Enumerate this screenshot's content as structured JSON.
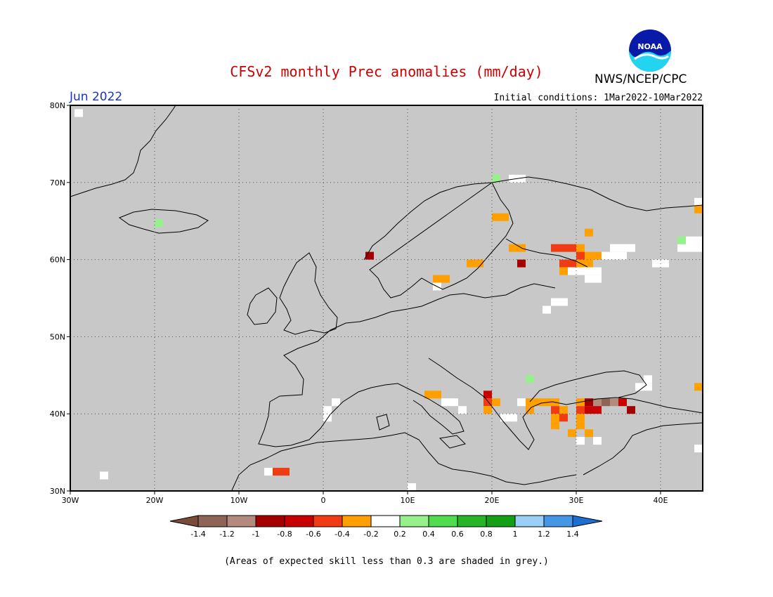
{
  "header": {
    "title": "CFSv2 monthly Prec anomalies (mm/day)",
    "organization": "NWS/NCEP/CPC",
    "logo_text": "NOAA",
    "month": "Jun 2022",
    "initial_conditions": "Initial conditions: 1Mar2022-10Mar2022"
  },
  "map": {
    "background_color": "#c8c8c8",
    "lon_range": [
      -30,
      45
    ],
    "lat_range": [
      30,
      80
    ],
    "lat_labels": [
      "80N",
      "70N",
      "60N",
      "50N",
      "40N",
      "30N"
    ],
    "lat_values": [
      80,
      70,
      60,
      50,
      40,
      30
    ],
    "lon_labels": [
      "30W",
      "20W",
      "10W",
      "0",
      "10E",
      "20E",
      "30E",
      "40E"
    ],
    "lon_values": [
      -30,
      -20,
      -10,
      0,
      10,
      20,
      30,
      40
    ],
    "anomaly_cells": [
      {
        "lon": -29,
        "lat": 79,
        "value": 0
      },
      {
        "lon": -19.5,
        "lat": 64.7,
        "value": 0.3
      },
      {
        "lon": -26,
        "lat": 32,
        "value": 0
      },
      {
        "lon": -6.5,
        "lat": 32.5,
        "value": 0
      },
      {
        "lon": -5.5,
        "lat": 32.5,
        "value": -0.5
      },
      {
        "lon": -4.5,
        "lat": 32.5,
        "value": -0.5
      },
      {
        "lon": 0.5,
        "lat": 39.5,
        "value": 0
      },
      {
        "lon": 0.5,
        "lat": 40.5,
        "value": 0
      },
      {
        "lon": 1.5,
        "lat": 41.5,
        "value": 0
      },
      {
        "lon": 5.5,
        "lat": 60.5,
        "value": -0.9
      },
      {
        "lon": 13.5,
        "lat": 57.5,
        "value": -0.3
      },
      {
        "lon": 14.5,
        "lat": 57.5,
        "value": -0.3
      },
      {
        "lon": 13.5,
        "lat": 56.5,
        "value": 0
      },
      {
        "lon": 17.5,
        "lat": 59.5,
        "value": -0.3
      },
      {
        "lon": 18.5,
        "lat": 59.5,
        "value": -0.3
      },
      {
        "lon": 20.5,
        "lat": 65.5,
        "value": -0.3
      },
      {
        "lon": 21.5,
        "lat": 65.5,
        "value": -0.3
      },
      {
        "lon": 20.5,
        "lat": 70.5,
        "value": 0.3
      },
      {
        "lon": 22.5,
        "lat": 70.5,
        "value": 0
      },
      {
        "lon": 23.5,
        "lat": 70.5,
        "value": 0
      },
      {
        "lon": 22.5,
        "lat": 61.5,
        "value": -0.3
      },
      {
        "lon": 23.5,
        "lat": 61.5,
        "value": -0.3
      },
      {
        "lon": 23.5,
        "lat": 59.5,
        "value": -0.9
      },
      {
        "lon": 27.5,
        "lat": 61.5,
        "value": -0.5
      },
      {
        "lon": 28.5,
        "lat": 61.5,
        "value": -0.5
      },
      {
        "lon": 29.5,
        "lat": 61.5,
        "value": -0.5
      },
      {
        "lon": 30.5,
        "lat": 61.5,
        "value": -0.3
      },
      {
        "lon": 30.5,
        "lat": 60.5,
        "value": -0.5
      },
      {
        "lon": 31.5,
        "lat": 60.5,
        "value": -0.3
      },
      {
        "lon": 32.5,
        "lat": 60.5,
        "value": -0.3
      },
      {
        "lon": 33.5,
        "lat": 60.5,
        "value": -0.3
      },
      {
        "lon": 28.5,
        "lat": 59.5,
        "value": -0.5
      },
      {
        "lon": 29.5,
        "lat": 59.5,
        "value": -0.5
      },
      {
        "lon": 30.5,
        "lat": 59.5,
        "value": -0.3
      },
      {
        "lon": 31.5,
        "lat": 59.5,
        "value": -0.3
      },
      {
        "lon": 28.5,
        "lat": 58.5,
        "value": -0.3
      },
      {
        "lon": 31.5,
        "lat": 63.5,
        "value": -0.3
      },
      {
        "lon": 29.5,
        "lat": 58.5,
        "value": 0
      },
      {
        "lon": 30.5,
        "lat": 58.5,
        "value": 0
      },
      {
        "lon": 31.5,
        "lat": 58.5,
        "value": 0
      },
      {
        "lon": 32.5,
        "lat": 58.5,
        "value": 0
      },
      {
        "lon": 31.5,
        "lat": 57.5,
        "value": 0
      },
      {
        "lon": 32.5,
        "lat": 57.5,
        "value": 0
      },
      {
        "lon": 33.5,
        "lat": 60.5,
        "value": 0
      },
      {
        "lon": 34.5,
        "lat": 60.5,
        "value": 0
      },
      {
        "lon": 35.5,
        "lat": 60.5,
        "value": 0
      },
      {
        "lon": 34.5,
        "lat": 61.5,
        "value": 0
      },
      {
        "lon": 35.5,
        "lat": 61.5,
        "value": 0
      },
      {
        "lon": 36.5,
        "lat": 61.5,
        "value": 0
      },
      {
        "lon": 39.5,
        "lat": 59.5,
        "value": 0
      },
      {
        "lon": 40.5,
        "lat": 59.5,
        "value": 0
      },
      {
        "lon": 42.5,
        "lat": 61.5,
        "value": 0
      },
      {
        "lon": 43.5,
        "lat": 61.5,
        "value": 0
      },
      {
        "lon": 44.5,
        "lat": 61.5,
        "value": 0
      },
      {
        "lon": 43.5,
        "lat": 62.5,
        "value": 0
      },
      {
        "lon": 44.5,
        "lat": 62.5,
        "value": 0
      },
      {
        "lon": 42.5,
        "lat": 62.5,
        "value": 0.3
      },
      {
        "lon": 44.5,
        "lat": 66.5,
        "value": -0.3
      },
      {
        "lon": 44.5,
        "lat": 67.5,
        "value": 0
      },
      {
        "lon": 27.5,
        "lat": 54.5,
        "value": 0
      },
      {
        "lon": 28.5,
        "lat": 54.5,
        "value": 0
      },
      {
        "lon": 26.5,
        "lat": 53.5,
        "value": 0
      },
      {
        "lon": 24.5,
        "lat": 44.5,
        "value": 0.3
      },
      {
        "lon": 12.5,
        "lat": 42.5,
        "value": -0.3
      },
      {
        "lon": 13.5,
        "lat": 42.5,
        "value": -0.3
      },
      {
        "lon": 14.5,
        "lat": 41.5,
        "value": 0
      },
      {
        "lon": 15.5,
        "lat": 41.5,
        "value": 0
      },
      {
        "lon": 16.5,
        "lat": 40.5,
        "value": 0
      },
      {
        "lon": 19.5,
        "lat": 42.5,
        "value": -0.7
      },
      {
        "lon": 19.5,
        "lat": 41.5,
        "value": -0.5
      },
      {
        "lon": 20.5,
        "lat": 41.5,
        "value": -0.3
      },
      {
        "lon": 19.5,
        "lat": 40.5,
        "value": -0.3
      },
      {
        "lon": 21.5,
        "lat": 39.5,
        "value": 0
      },
      {
        "lon": 22.5,
        "lat": 39.5,
        "value": 0
      },
      {
        "lon": 23.5,
        "lat": 41.5,
        "value": 0
      },
      {
        "lon": 24.5,
        "lat": 41.5,
        "value": -0.3
      },
      {
        "lon": 25.5,
        "lat": 41.5,
        "value": -0.3
      },
      {
        "lon": 26.5,
        "lat": 41.5,
        "value": -0.3
      },
      {
        "lon": 27.5,
        "lat": 41.5,
        "value": -0.3
      },
      {
        "lon": 24.5,
        "lat": 40.5,
        "value": -0.3
      },
      {
        "lon": 27.5,
        "lat": 40.5,
        "value": -0.5
      },
      {
        "lon": 28.5,
        "lat": 40.5,
        "value": -0.3
      },
      {
        "lon": 27.5,
        "lat": 39.5,
        "value": -0.3
      },
      {
        "lon": 28.5,
        "lat": 39.5,
        "value": -0.5
      },
      {
        "lon": 27.5,
        "lat": 38.5,
        "value": -0.3
      },
      {
        "lon": 30.5,
        "lat": 41.5,
        "value": -0.3
      },
      {
        "lon": 30.5,
        "lat": 40.5,
        "value": -0.5
      },
      {
        "lon": 31.5,
        "lat": 40.5,
        "value": -0.7
      },
      {
        "lon": 31.5,
        "lat": 41.5,
        "value": -0.9
      },
      {
        "lon": 32.5,
        "lat": 41.5,
        "value": -1.1
      },
      {
        "lon": 33.5,
        "lat": 41.5,
        "value": -1.3
      },
      {
        "lon": 34.5,
        "lat": 41.5,
        "value": -1.1
      },
      {
        "lon": 35.5,
        "lat": 41.5,
        "value": -0.7
      },
      {
        "lon": 36.5,
        "lat": 40.5,
        "value": -0.9
      },
      {
        "lon": 32.5,
        "lat": 40.5,
        "value": -0.7
      },
      {
        "lon": 30.5,
        "lat": 39.5,
        "value": -0.3
      },
      {
        "lon": 30.5,
        "lat": 38.5,
        "value": -0.3
      },
      {
        "lon": 29.5,
        "lat": 37.5,
        "value": -0.3
      },
      {
        "lon": 31.5,
        "lat": 37.5,
        "value": -0.3
      },
      {
        "lon": 30.5,
        "lat": 36.5,
        "value": 0
      },
      {
        "lon": 32.5,
        "lat": 36.5,
        "value": 0
      },
      {
        "lon": 44.5,
        "lat": 43.5,
        "value": -0.3
      },
      {
        "lon": 38.5,
        "lat": 44.5,
        "value": 0
      },
      {
        "lon": 38.5,
        "lat": 43.5,
        "value": 0
      },
      {
        "lon": 37.5,
        "lat": 43.5,
        "value": 0
      },
      {
        "lon": 10.5,
        "lat": 30.5,
        "value": 0
      },
      {
        "lon": 44.5,
        "lat": 35.5,
        "value": 0
      }
    ]
  },
  "colorbar": {
    "colors": [
      "#7a4a3a",
      "#8f6456",
      "#b48a7e",
      "#a40000",
      "#c80000",
      "#f03c14",
      "#ffa000",
      "#ffffff",
      "#96f08c",
      "#50dc50",
      "#28b428",
      "#14a014",
      "#9ad0f5",
      "#4696e6",
      "#1e6ed2"
    ],
    "tick_labels": [
      "-1.4",
      "-1.2",
      "-1",
      "-0.8",
      "-0.6",
      "-0.4",
      "-0.2",
      "0.2",
      "0.4",
      "0.6",
      "0.8",
      "1",
      "1.2",
      "1.4"
    ],
    "bins": [
      -1.6,
      -1.4,
      -1.2,
      -1.0,
      -0.8,
      -0.6,
      -0.4,
      -0.2,
      0.2,
      0.4,
      0.6,
      0.8,
      1.0,
      1.2,
      1.4,
      1.6
    ]
  },
  "footnote": "(Areas of expected skill less than 0.3 are shaded in grey.)"
}
